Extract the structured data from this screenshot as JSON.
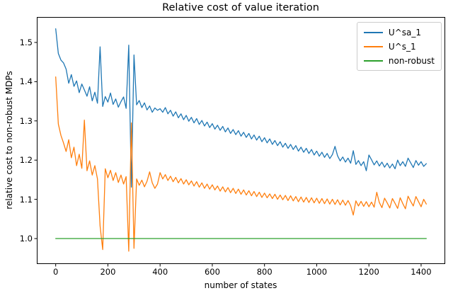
{
  "title": "Relative cost of value iteration",
  "xlabel": "number of states",
  "ylabel": "relative cost to non-robust MDPs",
  "legend": {
    "items": [
      {
        "label": "U^sa_1",
        "color": "#1f77b4"
      },
      {
        "label": "U^s_1",
        "color": "#ff7f0e"
      },
      {
        "label": "non-robust",
        "color": "#2ca02c"
      }
    ]
  },
  "chart_data": {
    "type": "line",
    "title": "Relative cost of value iteration",
    "xlabel": "number of states",
    "ylabel": "relative cost to non-robust MDPs",
    "xlim": [
      -71,
      1491
    ],
    "ylim": [
      0.936,
      1.564
    ],
    "x_ticks": [
      0,
      200,
      400,
      600,
      800,
      1000,
      1200,
      1400
    ],
    "x_tick_labels": [
      "0",
      "200",
      "400",
      "600",
      "800",
      "1000",
      "1200",
      "1400"
    ],
    "y_ticks": [
      1.0,
      1.1,
      1.2,
      1.3,
      1.4,
      1.5
    ],
    "y_tick_labels": [
      "1.0",
      "1.1",
      "1.2",
      "1.3",
      "1.4",
      "1.5"
    ],
    "grid": false,
    "legend_position": "upper right",
    "series": [
      {
        "name": "U^sa_1",
        "color": "#1f77b4",
        "x_start": 0,
        "x_step": 10,
        "y": [
          1.535,
          1.472,
          1.455,
          1.448,
          1.432,
          1.396,
          1.418,
          1.388,
          1.402,
          1.372,
          1.394,
          1.379,
          1.363,
          1.387,
          1.351,
          1.373,
          1.345,
          1.489,
          1.337,
          1.362,
          1.348,
          1.371,
          1.342,
          1.356,
          1.335,
          1.349,
          1.361,
          1.332,
          1.493,
          1.131,
          1.468,
          1.341,
          1.352,
          1.334,
          1.346,
          1.328,
          1.338,
          1.322,
          1.333,
          1.327,
          1.331,
          1.322,
          1.334,
          1.318,
          1.327,
          1.312,
          1.323,
          1.308,
          1.318,
          1.303,
          1.314,
          1.299,
          1.309,
          1.295,
          1.306,
          1.291,
          1.301,
          1.287,
          1.297,
          1.283,
          1.293,
          1.279,
          1.289,
          1.276,
          1.286,
          1.272,
          1.282,
          1.268,
          1.278,
          1.265,
          1.275,
          1.261,
          1.271,
          1.258,
          1.268,
          1.254,
          1.264,
          1.251,
          1.261,
          1.247,
          1.257,
          1.244,
          1.254,
          1.24,
          1.25,
          1.237,
          1.247,
          1.233,
          1.243,
          1.23,
          1.24,
          1.227,
          1.237,
          1.223,
          1.233,
          1.22,
          1.23,
          1.217,
          1.227,
          1.213,
          1.223,
          1.21,
          1.22,
          1.207,
          1.217,
          1.204,
          1.214,
          1.235,
          1.211,
          1.198,
          1.208,
          1.195,
          1.205,
          1.192,
          1.224,
          1.189,
          1.199,
          1.186,
          1.196,
          1.173,
          1.213,
          1.201,
          1.188,
          1.198,
          1.185,
          1.195,
          1.182,
          1.192,
          1.18,
          1.19,
          1.178,
          1.2,
          1.186,
          1.196,
          1.184,
          1.205,
          1.193,
          1.181,
          1.199,
          1.187,
          1.196,
          1.184,
          1.191
        ]
      },
      {
        "name": "U^s_1",
        "color": "#ff7f0e",
        "x_start": 0,
        "x_step": 10,
        "y": [
          1.412,
          1.292,
          1.263,
          1.244,
          1.222,
          1.252,
          1.206,
          1.233,
          1.186,
          1.215,
          1.179,
          1.302,
          1.173,
          1.198,
          1.162,
          1.186,
          1.152,
          1.032,
          0.972,
          1.178,
          1.155,
          1.174,
          1.148,
          1.168,
          1.143,
          1.162,
          1.139,
          1.158,
          0.968,
          1.295,
          0.975,
          1.152,
          1.136,
          1.149,
          1.132,
          1.146,
          1.17,
          1.142,
          1.128,
          1.139,
          1.168,
          1.152,
          1.163,
          1.148,
          1.159,
          1.145,
          1.156,
          1.142,
          1.153,
          1.139,
          1.15,
          1.137,
          1.147,
          1.134,
          1.145,
          1.131,
          1.142,
          1.128,
          1.139,
          1.126,
          1.137,
          1.124,
          1.134,
          1.121,
          1.132,
          1.119,
          1.13,
          1.117,
          1.128,
          1.115,
          1.126,
          1.113,
          1.124,
          1.111,
          1.122,
          1.109,
          1.12,
          1.107,
          1.118,
          1.105,
          1.116,
          1.104,
          1.114,
          1.102,
          1.113,
          1.1,
          1.111,
          1.099,
          1.11,
          1.097,
          1.109,
          1.096,
          1.107,
          1.094,
          1.106,
          1.093,
          1.105,
          1.092,
          1.104,
          1.091,
          1.103,
          1.09,
          1.102,
          1.089,
          1.101,
          1.088,
          1.1,
          1.087,
          1.099,
          1.086,
          1.098,
          1.085,
          1.097,
          1.084,
          1.06,
          1.096,
          1.083,
          1.095,
          1.082,
          1.094,
          1.081,
          1.093,
          1.08,
          1.118,
          1.092,
          1.079,
          1.103,
          1.091,
          1.078,
          1.102,
          1.09,
          1.077,
          1.104,
          1.089,
          1.076,
          1.108,
          1.095,
          1.083,
          1.107,
          1.094,
          1.081,
          1.1,
          1.088
        ]
      },
      {
        "name": "non-robust",
        "color": "#2ca02c",
        "x": [
          0,
          1420
        ],
        "y": [
          1.0,
          1.0
        ]
      }
    ]
  }
}
